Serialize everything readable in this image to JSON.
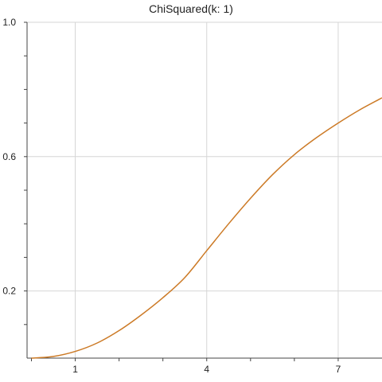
{
  "chart_data": {
    "type": "line",
    "title": "ChiSquared(k: 1)",
    "xlabel": "",
    "ylabel": "",
    "xlim": [
      -0.1,
      8.0
    ],
    "ylim": [
      0.0,
      1.0
    ],
    "x_ticks": [
      1,
      4,
      7
    ],
    "x_tick_labels": [
      "1",
      "4",
      "7"
    ],
    "x_minor_ticks": [
      0,
      1,
      2,
      3,
      4,
      5,
      6,
      7
    ],
    "y_ticks": [
      0.2,
      0.6,
      1.0
    ],
    "y_tick_labels": [
      "0.2",
      "0.6",
      "1.0"
    ],
    "y_minor_ticks": [
      0.1,
      0.2,
      0.3,
      0.4,
      0.5,
      0.6,
      0.7,
      0.8,
      0.9,
      1.0
    ],
    "grid": true,
    "series": [
      {
        "color": "#cc7a26",
        "x": [
          0.0,
          0.5,
          1.0,
          1.5,
          2.0,
          2.5,
          3.0,
          3.5,
          4.0,
          4.5,
          5.0,
          5.5,
          6.0,
          6.5,
          7.0,
          7.5,
          8.0
        ],
        "y": [
          0.0,
          0.005,
          0.02,
          0.045,
          0.082,
          0.128,
          0.18,
          0.24,
          0.32,
          0.4,
          0.476,
          0.546,
          0.606,
          0.656,
          0.7,
          0.74,
          0.775
        ]
      }
    ]
  }
}
